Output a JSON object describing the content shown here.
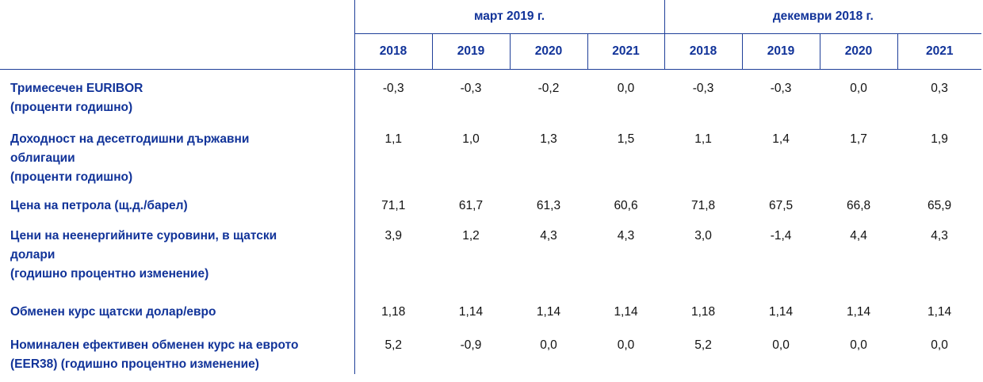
{
  "groups": [
    {
      "label": "март 2019 г.",
      "years": [
        "2018",
        "2019",
        "2020",
        "2021"
      ]
    },
    {
      "label": "декември 2018 г.",
      "years": [
        "2018",
        "2019",
        "2020",
        "2021"
      ]
    }
  ],
  "rows": [
    {
      "label_lines": [
        "Тримесечен EURIBOR",
        "(проценти годишно)"
      ],
      "values": [
        "-0,3",
        "-0,3",
        "-0,2",
        "0,0",
        "-0,3",
        "-0,3",
        "0,0",
        "0,3"
      ]
    },
    {
      "label_lines": [
        "Доходност на десетгодишни държавни",
        "облигации",
        "(проценти годишно)"
      ],
      "values": [
        "1,1",
        "1,0",
        "1,3",
        "1,5",
        "1,1",
        "1,4",
        "1,7",
        "1,9"
      ]
    },
    {
      "label_lines": [
        "Цена на петрола (щ.д./барел)"
      ],
      "values": [
        "71,1",
        "61,7",
        "61,3",
        "60,6",
        "71,8",
        "67,5",
        "66,8",
        "65,9"
      ]
    },
    {
      "label_lines": [
        "Цени на неенергийните суровини, в щатски",
        "долари",
        "(годишно процентно изменение)"
      ],
      "values": [
        "3,9",
        "1,2",
        "4,3",
        "4,3",
        "3,0",
        "-1,4",
        "4,4",
        "4,3"
      ]
    },
    {
      "label_lines": [
        "Обменен курс щатски долар/евро"
      ],
      "values": [
        "1,18",
        "1,14",
        "1,14",
        "1,14",
        "1,18",
        "1,14",
        "1,14",
        "1,14"
      ]
    },
    {
      "label_lines": [
        "Номинален ефективен обменен курс на еврото",
        "(EER38) (годишно процентно изменение)"
      ],
      "values": [
        "5,2",
        "-0,9",
        "0,0",
        "0,0",
        "5,2",
        "0,0",
        "0,0",
        "0,0"
      ]
    }
  ]
}
